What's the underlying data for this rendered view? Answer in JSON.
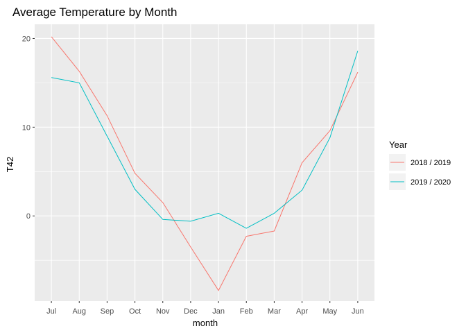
{
  "chart_data": {
    "type": "line",
    "title": "Average Temperature by Month",
    "xlabel": "month",
    "ylabel": "T42",
    "categories": [
      "Jul",
      "Aug",
      "Sep",
      "Oct",
      "Nov",
      "Dec",
      "Jan",
      "Feb",
      "Mar",
      "Apr",
      "May",
      "Jun"
    ],
    "ylim": [
      -9.6,
      21.6
    ],
    "yticks": [
      0,
      10,
      20
    ],
    "grid": true,
    "legend_title": "Year",
    "legend_position": "right",
    "series": [
      {
        "name": "2018 / 2019",
        "color": "#F8766D",
        "values": [
          20.2,
          16.3,
          11.3,
          4.8,
          1.5,
          -3.5,
          -8.4,
          -2.3,
          -1.7,
          6.0,
          9.6,
          16.2
        ]
      },
      {
        "name": "2019 / 2020",
        "color": "#00BFC4",
        "values": [
          15.6,
          15.0,
          9.0,
          3.0,
          -0.4,
          -0.6,
          0.3,
          -1.4,
          0.3,
          2.9,
          8.8,
          18.6
        ]
      }
    ]
  }
}
